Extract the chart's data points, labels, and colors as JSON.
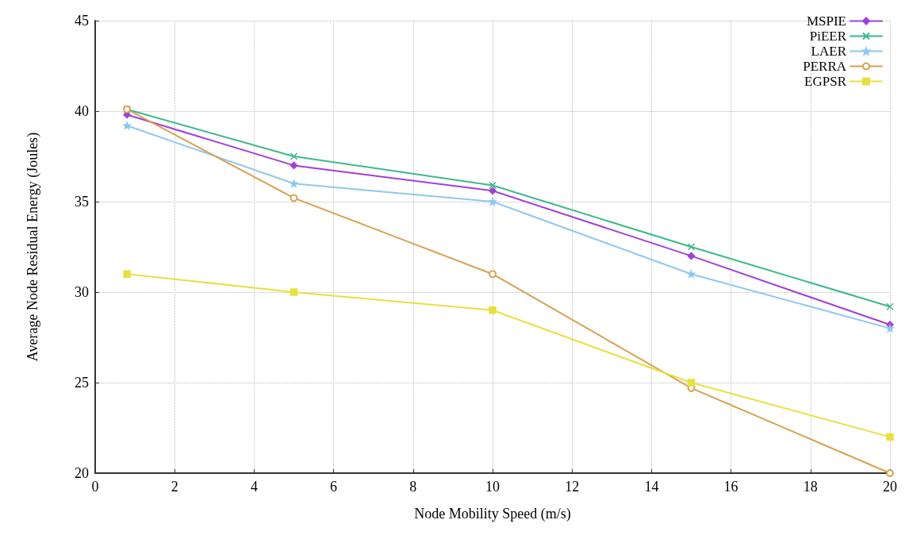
{
  "chart_data": {
    "type": "line",
    "xlabel": "Node Mobility Speed (m/s)",
    "ylabel": "Average Node Residual Energy (Joules)",
    "x": [
      0.8,
      5,
      10,
      15,
      20
    ],
    "xlim": [
      0,
      20
    ],
    "xticks": [
      0,
      2,
      4,
      6,
      8,
      10,
      12,
      14,
      16,
      18,
      20
    ],
    "ylim": [
      20,
      45
    ],
    "yticks": [
      20,
      25,
      30,
      35,
      40,
      45
    ],
    "grid": true,
    "legend": "top right",
    "series": [
      {
        "name": "MSPIE",
        "color": "#a040d8",
        "marker": "diamond",
        "values": [
          39.8,
          37.0,
          35.6,
          32.0,
          28.2
        ]
      },
      {
        "name": "PiEER",
        "color": "#3cb88a",
        "marker": "cross",
        "values": [
          40.1,
          37.5,
          35.9,
          32.5,
          29.2
        ]
      },
      {
        "name": "LAER",
        "color": "#8ec8f0",
        "marker": "star",
        "values": [
          39.2,
          36.0,
          35.0,
          31.0,
          28.0
        ]
      },
      {
        "name": "PERRA",
        "color": "#d8a050",
        "marker": "circle",
        "values": [
          40.1,
          35.2,
          31.0,
          24.7,
          20.0
        ]
      },
      {
        "name": "EGPSR",
        "color": "#e8e040",
        "marker": "square",
        "values": [
          31.0,
          30.0,
          29.0,
          25.0,
          22.0
        ]
      }
    ]
  }
}
